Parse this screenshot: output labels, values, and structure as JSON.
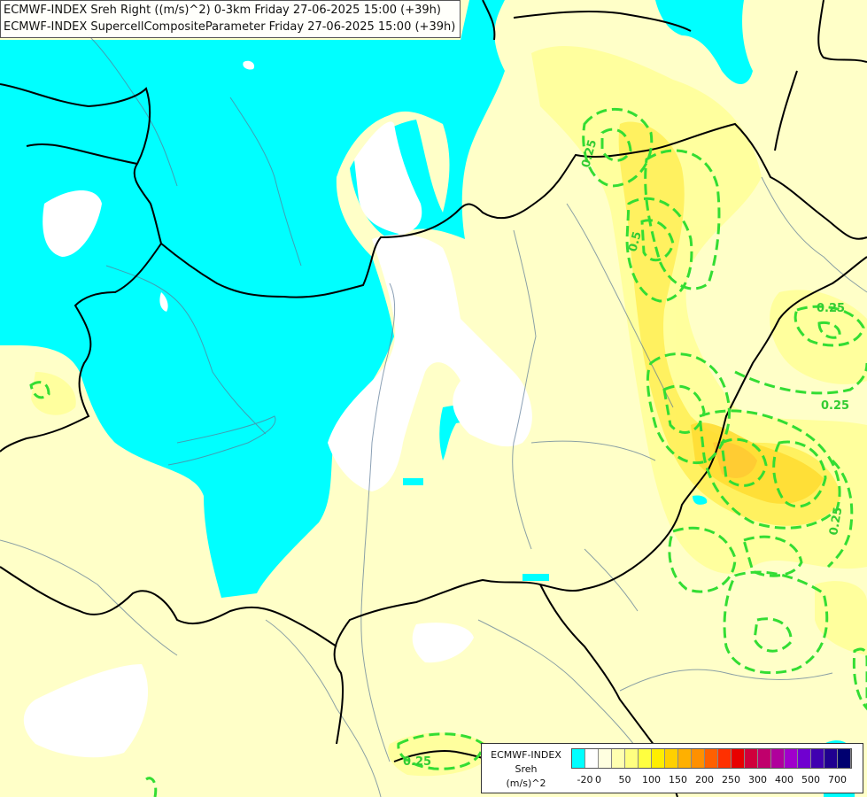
{
  "header": {
    "line1": "ECMWF-INDEX Sreh Right ((m/s)^2) 0-3km Friday 27-06-2025 15:00 (+39h)",
    "line2": "ECMWF-INDEX SupercellCompositeParameter Friday 27-06-2025 15:00 (+39h)"
  },
  "map": {
    "colors": {
      "background": "#ffffc8",
      "low_helicity": "#00ffff",
      "zero_band": "#ffffff",
      "band_50": "#ffff99",
      "band_100": "#ffee55",
      "band_150": "#ffdd33",
      "border": "#000000",
      "river": "#5a7896",
      "scp_contour": "#33dd33"
    },
    "contour_labels": [
      "0.25",
      "0.25",
      "0.25",
      "0.25",
      "0.25",
      "0.5"
    ]
  },
  "legend": {
    "title": "ECMWF-INDEX",
    "subtitle": "Sreh",
    "units": "(m/s)^2",
    "colors": [
      "#00ffff",
      "#ffffff",
      "#ffffe0",
      "#ffffb0",
      "#ffff80",
      "#ffff40",
      "#ffee00",
      "#ffd000",
      "#ffb000",
      "#ff9000",
      "#ff6000",
      "#ff3000",
      "#e80000",
      "#d0003c",
      "#c0006c",
      "#b0009c",
      "#a000cc",
      "#7000d0",
      "#4000b0",
      "#200090",
      "#000070"
    ],
    "ticks": [
      "-20",
      "0",
      "50",
      "100",
      "150",
      "200",
      "250",
      "300",
      "400",
      "500",
      "700"
    ]
  }
}
